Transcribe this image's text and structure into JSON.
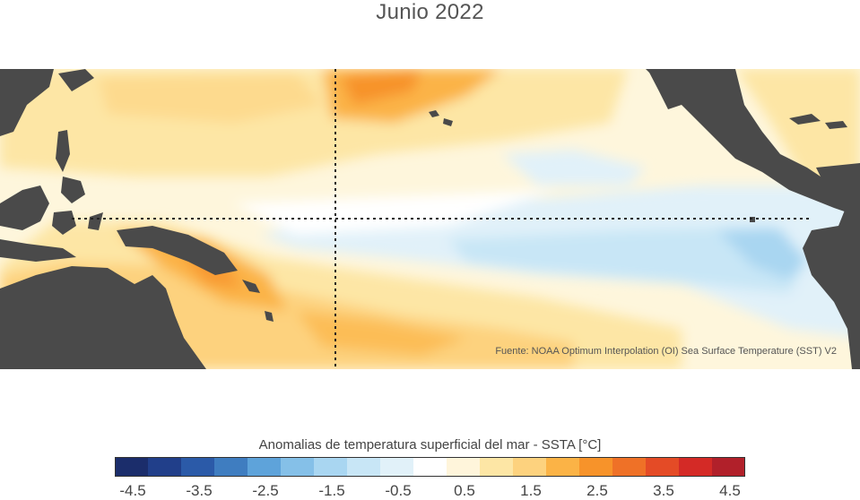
{
  "title": "Junio 2022",
  "source": "Fuente: NOAA Optimum Interpolation (OI) Sea Surface Temperature (SST) V2",
  "colorbar": {
    "title": "Anomalias de temperatura superficial del mar - SSTA  [°C]",
    "ticks": [
      "-4.5",
      "-3.5",
      "-2.5",
      "-1.5",
      "-0.5",
      "0.5",
      "1.5",
      "2.5",
      "3.5",
      "4.5"
    ],
    "colors": [
      "#1b2d6b",
      "#213f8a",
      "#2b5aa8",
      "#3f7dc0",
      "#5ea3da",
      "#85c0e8",
      "#a9d6f1",
      "#c8e6f6",
      "#e1f1f9",
      "#ffffff",
      "#fff5db",
      "#fde6a5",
      "#fdd27e",
      "#fbb346",
      "#f7932a",
      "#ef7127",
      "#e44b26",
      "#d42a26",
      "#b1202a"
    ]
  },
  "map": {
    "land_color": "#4a4a4a",
    "reference_line_color": "#222222"
  }
}
